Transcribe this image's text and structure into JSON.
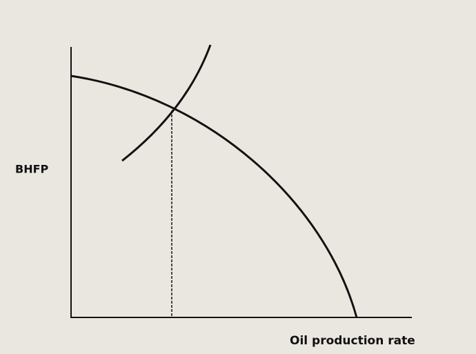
{
  "axes": {
    "y_label": "BHFP",
    "x_label": "Oil production rate"
  }
}
